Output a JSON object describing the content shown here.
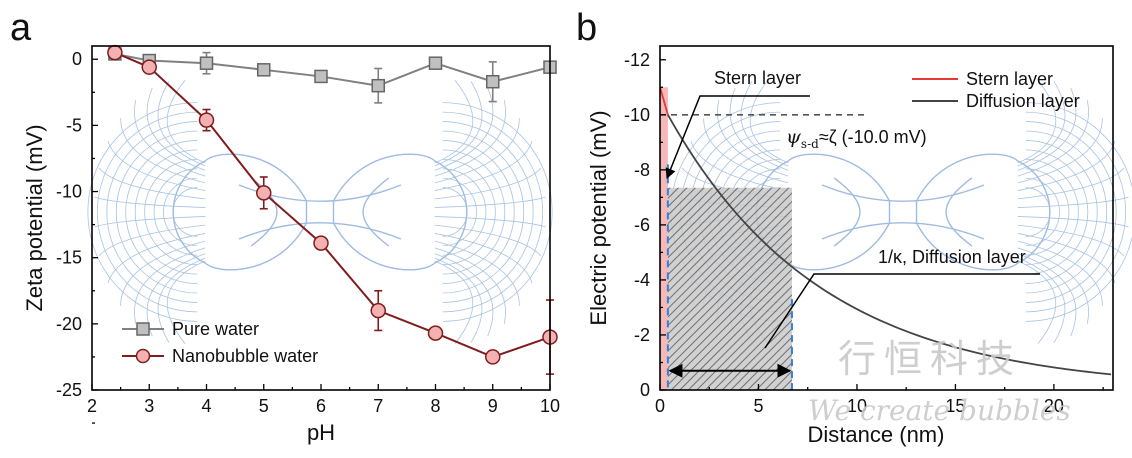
{
  "chart_data": [
    {
      "type": "line",
      "panel": "a",
      "xlabel": "pH",
      "ylabel": "Zeta potential (mV)",
      "xlim": [
        2,
        10
      ],
      "ylim": [
        -25,
        1
      ],
      "x_ticks": [
        "2",
        "3",
        "4",
        "5",
        "6",
        "7",
        "8",
        "9",
        "10"
      ],
      "y_ticks": [
        "0",
        "-5",
        "-10",
        "-15",
        "-20",
        "-25"
      ],
      "legend": [
        "Pure water",
        "Nanobubble water"
      ],
      "series": [
        {
          "name": "Pure water",
          "color": "#808080",
          "marker": "square",
          "x": [
            2.4,
            3,
            4,
            5,
            6,
            7,
            8,
            9,
            10
          ],
          "values": [
            0.4,
            -0.1,
            -0.3,
            -0.8,
            -1.3,
            -2.0,
            -0.3,
            -1.7,
            -0.6
          ],
          "error": [
            0.3,
            0.3,
            0.8,
            0.4,
            0.4,
            1.3,
            0.3,
            1.5,
            0.3
          ]
        },
        {
          "name": "Nanobubble water",
          "color": "#7f1d1d",
          "fill": "#f3b1b1",
          "marker": "circle",
          "x": [
            2.4,
            3,
            4,
            5,
            6,
            7,
            8,
            9,
            10
          ],
          "values": [
            0.5,
            -0.6,
            -4.6,
            -10.1,
            -13.9,
            -19.0,
            -20.7,
            -22.5,
            -21.0
          ],
          "error": [
            0.3,
            0.4,
            0.8,
            1.2,
            0.3,
            1.5,
            0.3,
            0.4,
            2.8
          ]
        }
      ]
    },
    {
      "type": "line",
      "panel": "b",
      "xlabel": "Distance (nm)",
      "ylabel": "Electric potential (mV)",
      "xlim": [
        0,
        23
      ],
      "ylim": [
        0,
        -12.5
      ],
      "x_ticks": [
        "0",
        "5",
        "10",
        "15",
        "20"
      ],
      "y_ticks": [
        "0",
        "-2",
        "-4",
        "-6",
        "-8",
        "-10",
        "-12"
      ],
      "legend": [
        "Stern layer",
        "Diffusion layer"
      ],
      "reference_value": -10.0,
      "kappa_inverse_nm": 6.7,
      "stern_thickness_nm": 0.4,
      "series": [
        {
          "name": "Stern layer",
          "color": "#e53935",
          "x": [
            0,
            0.4
          ],
          "values": [
            -11.0,
            -10.0
          ]
        },
        {
          "name": "Diffusion layer",
          "color": "#444444",
          "x": [
            0.4,
            2,
            4,
            6,
            8,
            10,
            12,
            14,
            16,
            18,
            20,
            22,
            23
          ],
          "values": [
            -10.0,
            -7.9,
            -5.9,
            -4.4,
            -3.2,
            -2.4,
            -1.8,
            -1.3,
            -1.0,
            -0.7,
            -0.52,
            -0.38,
            -0.33
          ]
        }
      ],
      "annotations": {
        "stern_label": "Stern layer",
        "psi_symbol": "ψ",
        "psi_subscript": "s-d",
        "approx_text": "≈ζ (-10.0 mV)",
        "diffusion_label": "1/κ, Diffusion layer"
      }
    }
  ],
  "panel_labels": {
    "a": "a",
    "b": "b"
  },
  "watermark": {
    "cn": "行恒科技",
    "en": "We create bubbles"
  },
  "colors": {
    "pure_water": "#808080",
    "nanobubble_line": "#7f1d1d",
    "nanobubble_fill": "#f3b1b1",
    "stern": "#e53935",
    "diffusion": "#444444",
    "bubble_lines": "#a9c3e2",
    "dash_blue": "#3b7fd0",
    "stern_band": "#f6b8b8"
  }
}
